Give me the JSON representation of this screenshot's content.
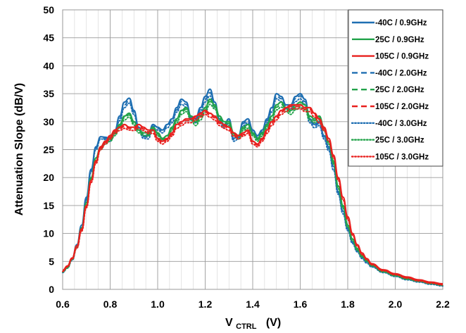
{
  "chart_data": {
    "type": "line",
    "title": "",
    "xlabel_main": "V",
    "xlabel_sub": "CTRL",
    "xlabel_unit": "(V)",
    "ylabel": "Attenuation Slope  (dB/V)",
    "xlim": [
      0.6,
      2.2
    ],
    "ylim": [
      0,
      50
    ],
    "xticks": [
      "0.6",
      "0.8",
      "1.0",
      "1.2",
      "1.4",
      "1.6",
      "1.8",
      "2.0",
      "2.2"
    ],
    "yticks": [
      "0",
      "5",
      "10",
      "15",
      "20",
      "25",
      "30",
      "35",
      "40",
      "45",
      "50"
    ],
    "grid": true,
    "legend_position": "top-right",
    "colors": {
      "-40C": "#1f6fb2",
      "25C": "#22a34a",
      "105C": "#e8201e"
    },
    "x": [
      0.6,
      0.62,
      0.64,
      0.66,
      0.68,
      0.7,
      0.72,
      0.74,
      0.76,
      0.78,
      0.8,
      0.82,
      0.84,
      0.86,
      0.88,
      0.9,
      0.92,
      0.94,
      0.96,
      0.98,
      1.0,
      1.02,
      1.04,
      1.06,
      1.08,
      1.1,
      1.12,
      1.14,
      1.16,
      1.18,
      1.2,
      1.22,
      1.24,
      1.26,
      1.28,
      1.3,
      1.32,
      1.34,
      1.36,
      1.38,
      1.4,
      1.42,
      1.44,
      1.46,
      1.48,
      1.5,
      1.52,
      1.54,
      1.56,
      1.58,
      1.6,
      1.62,
      1.64,
      1.66,
      1.68,
      1.7,
      1.72,
      1.74,
      1.76,
      1.78,
      1.8,
      1.82,
      1.84,
      1.86,
      1.88,
      1.9,
      1.95,
      2.0,
      2.05,
      2.1,
      2.15,
      2.2
    ],
    "series": [
      {
        "name": "-40C /  0.9GHz",
        "temp": "-40C",
        "style": "solid",
        "values": [
          3.2,
          4.0,
          5.5,
          8.0,
          11.5,
          16.5,
          21.5,
          25.5,
          27.3,
          27.2,
          27.0,
          28.5,
          31.0,
          33.5,
          34.2,
          32.0,
          29.0,
          27.5,
          27.5,
          29.5,
          29.0,
          28.5,
          29.5,
          30.5,
          32.5,
          34.0,
          33.5,
          31.0,
          30.5,
          32.5,
          34.5,
          35.8,
          33.5,
          30.5,
          29.5,
          30.5,
          27.0,
          27.5,
          30.0,
          30.5,
          28.5,
          27.5,
          28.5,
          30.5,
          32.5,
          35.0,
          34.5,
          33.0,
          33.0,
          34.5,
          35.0,
          34.0,
          30.5,
          29.5,
          30.0,
          27.5,
          25.5,
          22.0,
          17.5,
          14.0,
          11.0,
          8.5,
          7.0,
          5.8,
          5.0,
          4.2,
          3.2,
          2.5,
          1.9,
          1.5,
          1.1,
          0.8
        ]
      },
      {
        "name": "25C /  0.9GHz",
        "temp": "25C",
        "style": "solid",
        "values": [
          3.3,
          4.0,
          5.5,
          7.8,
          11.0,
          15.5,
          20.0,
          23.5,
          25.5,
          26.5,
          27.0,
          28.0,
          29.5,
          31.0,
          31.5,
          30.0,
          28.5,
          28.0,
          28.0,
          29.0,
          28.0,
          27.0,
          27.5,
          29.0,
          30.5,
          32.0,
          32.5,
          31.0,
          30.0,
          31.0,
          32.5,
          34.0,
          33.0,
          31.0,
          30.0,
          30.0,
          28.0,
          27.5,
          29.0,
          29.5,
          28.0,
          27.0,
          28.0,
          29.5,
          31.0,
          33.0,
          33.5,
          32.5,
          32.0,
          33.0,
          33.5,
          33.0,
          31.0,
          30.5,
          31.0,
          29.0,
          26.5,
          23.0,
          18.5,
          15.0,
          11.5,
          9.0,
          7.3,
          6.0,
          5.2,
          4.4,
          3.3,
          2.6,
          2.0,
          1.6,
          1.2,
          0.9
        ]
      },
      {
        "name": "105C /  0.9GHz",
        "temp": "105C",
        "style": "solid",
        "values": [
          3.4,
          4.2,
          5.6,
          7.8,
          10.8,
          15.0,
          19.5,
          23.0,
          25.5,
          26.5,
          27.5,
          28.5,
          29.0,
          29.5,
          29.0,
          29.0,
          29.5,
          29.0,
          28.5,
          28.5,
          27.0,
          26.5,
          27.0,
          28.0,
          29.5,
          30.0,
          30.5,
          30.5,
          31.0,
          31.5,
          32.0,
          31.5,
          31.0,
          30.0,
          29.5,
          29.0,
          28.0,
          27.5,
          28.0,
          28.5,
          26.5,
          26.0,
          27.0,
          28.5,
          30.0,
          31.0,
          32.0,
          32.5,
          33.0,
          33.0,
          33.0,
          32.5,
          32.5,
          31.5,
          30.5,
          29.0,
          27.0,
          24.0,
          20.0,
          16.5,
          13.0,
          10.0,
          8.0,
          6.5,
          5.5,
          4.6,
          3.5,
          2.8,
          2.2,
          1.7,
          1.3,
          1.0
        ]
      },
      {
        "name": "-40C /  2.0GHz",
        "temp": "-40C",
        "style": "dashed",
        "values": [
          3.1,
          3.9,
          5.3,
          7.8,
          11.3,
          16.2,
          21.3,
          25.3,
          27.1,
          27.0,
          26.8,
          28.2,
          30.6,
          33.0,
          33.8,
          31.7,
          28.8,
          27.3,
          27.2,
          29.2,
          28.8,
          28.3,
          29.2,
          30.2,
          32.1,
          33.6,
          33.1,
          30.7,
          30.2,
          32.1,
          34.0,
          35.2,
          33.1,
          30.2,
          29.2,
          30.1,
          26.8,
          27.2,
          29.7,
          30.2,
          28.2,
          27.2,
          28.2,
          30.2,
          32.1,
          34.6,
          34.1,
          32.7,
          32.7,
          34.1,
          34.6,
          33.6,
          30.2,
          29.2,
          29.7,
          27.2,
          25.2,
          21.7,
          17.3,
          13.8,
          10.8,
          8.4,
          6.9,
          5.7,
          4.9,
          4.1,
          3.1,
          2.4,
          1.8,
          1.4,
          1.0,
          0.7
        ]
      },
      {
        "name": "25C /  2.0GHz",
        "temp": "25C",
        "style": "dashed",
        "values": [
          3.2,
          3.9,
          5.4,
          7.6,
          10.8,
          15.3,
          19.8,
          23.3,
          25.3,
          26.3,
          26.8,
          27.8,
          29.2,
          30.7,
          31.2,
          29.7,
          28.3,
          27.8,
          27.7,
          28.7,
          27.8,
          26.8,
          27.2,
          28.7,
          30.2,
          31.7,
          32.2,
          30.7,
          29.7,
          30.7,
          32.1,
          33.6,
          32.7,
          30.7,
          29.7,
          29.7,
          27.8,
          27.2,
          28.7,
          29.2,
          27.8,
          26.8,
          27.7,
          29.2,
          30.7,
          32.6,
          33.1,
          32.2,
          31.7,
          32.6,
          33.1,
          32.6,
          30.7,
          30.2,
          30.7,
          28.7,
          26.3,
          22.7,
          18.3,
          14.8,
          11.3,
          8.9,
          7.2,
          5.9,
          5.1,
          4.3,
          3.2,
          2.5,
          1.9,
          1.5,
          1.1,
          0.8
        ]
      },
      {
        "name": "105C /  2.0GHz",
        "temp": "105C",
        "style": "dashed",
        "values": [
          3.3,
          4.1,
          5.5,
          7.6,
          10.6,
          14.8,
          19.3,
          22.8,
          25.3,
          26.3,
          27.2,
          28.2,
          28.7,
          29.2,
          28.8,
          28.7,
          29.2,
          28.7,
          28.2,
          28.2,
          26.8,
          26.3,
          26.8,
          27.7,
          29.2,
          29.7,
          30.2,
          30.2,
          30.7,
          31.2,
          31.7,
          31.2,
          30.7,
          29.7,
          29.2,
          28.7,
          27.7,
          27.2,
          27.7,
          28.2,
          26.3,
          25.8,
          26.8,
          28.2,
          29.7,
          30.7,
          31.7,
          32.2,
          32.7,
          32.7,
          32.7,
          32.2,
          32.2,
          31.2,
          30.2,
          28.7,
          26.8,
          23.8,
          19.8,
          16.3,
          12.8,
          9.9,
          7.9,
          6.4,
          5.4,
          4.5,
          3.4,
          2.7,
          2.1,
          1.6,
          1.2,
          0.9
        ]
      },
      {
        "name": "-40C /  3.0GHz",
        "temp": "-40C",
        "style": "dotted",
        "values": [
          3.0,
          3.8,
          5.2,
          7.6,
          11.0,
          15.9,
          21.0,
          25.0,
          26.9,
          26.8,
          26.5,
          27.9,
          30.2,
          32.5,
          33.3,
          31.3,
          28.5,
          27.0,
          26.9,
          28.9,
          28.5,
          28.0,
          28.9,
          29.8,
          31.7,
          33.1,
          32.6,
          30.3,
          29.8,
          31.7,
          33.5,
          34.6,
          32.6,
          29.8,
          28.9,
          29.7,
          26.5,
          26.9,
          29.3,
          29.8,
          27.9,
          26.9,
          27.9,
          29.8,
          31.7,
          34.1,
          33.6,
          32.3,
          32.3,
          33.6,
          34.1,
          33.1,
          29.8,
          28.9,
          29.3,
          26.9,
          24.8,
          21.3,
          17.0,
          13.5,
          10.5,
          8.2,
          6.7,
          5.5,
          4.7,
          4.0,
          3.0,
          2.3,
          1.7,
          1.3,
          0.9,
          0.6
        ]
      },
      {
        "name": "25C /  3.0GHz",
        "temp": "25C",
        "style": "dotted",
        "values": [
          3.1,
          3.8,
          5.3,
          7.4,
          10.6,
          15.1,
          19.6,
          23.0,
          25.0,
          26.0,
          26.5,
          27.5,
          28.9,
          30.3,
          30.8,
          29.4,
          28.0,
          27.5,
          27.4,
          28.4,
          27.5,
          26.5,
          26.9,
          28.4,
          29.8,
          31.3,
          31.8,
          30.3,
          29.3,
          30.3,
          31.7,
          33.1,
          32.3,
          30.3,
          29.3,
          29.3,
          27.5,
          26.9,
          28.4,
          28.8,
          27.5,
          26.5,
          27.4,
          28.8,
          30.3,
          32.1,
          32.6,
          31.8,
          31.3,
          32.1,
          32.6,
          32.1,
          30.3,
          29.8,
          30.3,
          28.4,
          26.0,
          22.4,
          18.0,
          14.5,
          11.1,
          8.7,
          7.0,
          5.8,
          5.0,
          4.2,
          3.1,
          2.4,
          1.8,
          1.4,
          1.0,
          0.7
        ]
      },
      {
        "name": "105C /  3.0GHz",
        "temp": "105C",
        "style": "dotted",
        "values": [
          3.2,
          4.0,
          5.4,
          7.4,
          10.4,
          14.6,
          19.1,
          22.5,
          25.0,
          26.0,
          26.9,
          27.9,
          28.4,
          28.8,
          28.5,
          28.4,
          28.8,
          28.4,
          27.9,
          27.9,
          26.5,
          26.0,
          26.5,
          27.4,
          28.8,
          29.3,
          29.8,
          29.8,
          30.3,
          30.8,
          31.3,
          30.8,
          30.3,
          29.3,
          28.8,
          28.4,
          27.4,
          26.9,
          27.4,
          27.9,
          26.0,
          25.5,
          26.5,
          27.9,
          29.3,
          30.3,
          31.3,
          31.8,
          32.3,
          32.3,
          32.3,
          31.8,
          31.8,
          30.8,
          29.8,
          28.4,
          26.5,
          23.5,
          19.5,
          16.0,
          12.5,
          9.7,
          7.7,
          6.2,
          5.3,
          4.4,
          3.3,
          2.6,
          2.0,
          1.5,
          1.1,
          0.8
        ]
      }
    ]
  }
}
